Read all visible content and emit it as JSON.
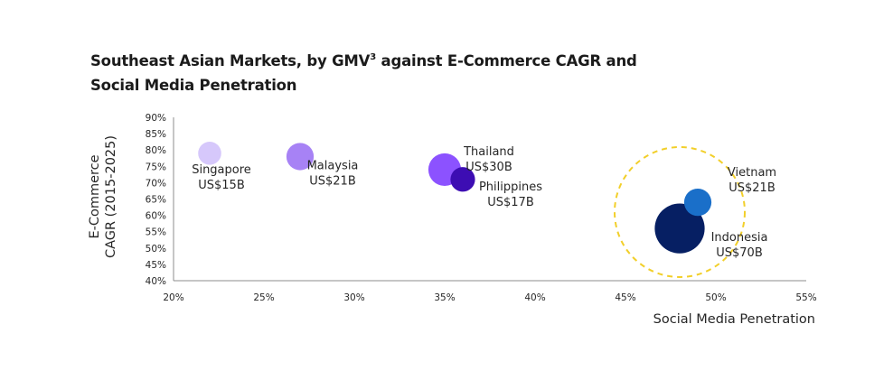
{
  "title": {
    "line1_pre": "Southeast Asian Markets, by GMV",
    "superscript": "3",
    "line1_post": " against E-Commerce CAGR and",
    "line2": "Social Media Penetration"
  },
  "chart_data": {
    "type": "scatter",
    "xlabel": "Social Media Penetration",
    "ylabel_lines": [
      "E-Commerce",
      "CAGR (2015-2025)"
    ],
    "xlim": [
      0.2,
      0.55
    ],
    "ylim": [
      0.4,
      0.9
    ],
    "xticks": [
      0.2,
      0.25,
      0.3,
      0.35,
      0.4,
      0.45,
      0.5,
      0.55
    ],
    "xtick_labels": [
      "20%",
      "25%",
      "30%",
      "35%",
      "40%",
      "45%",
      "50%",
      "55%"
    ],
    "yticks": [
      0.4,
      0.45,
      0.5,
      0.55,
      0.6,
      0.65,
      0.7,
      0.75,
      0.8,
      0.85,
      0.9
    ],
    "ytick_labels": [
      "40%",
      "45%",
      "50%",
      "55%",
      "60%",
      "65%",
      "70%",
      "75%",
      "80%",
      "85%",
      "90%"
    ],
    "grid": false,
    "points": [
      {
        "name": "Singapore",
        "gmv_label": "US$15B",
        "x": 0.22,
        "y": 0.79,
        "gmv": 15,
        "color": "#d6c8fb"
      },
      {
        "name": "Malaysia",
        "gmv_label": "US$21B",
        "x": 0.27,
        "y": 0.78,
        "gmv": 21,
        "color": "#a782f5"
      },
      {
        "name": "Thailand",
        "gmv_label": "US$30B",
        "x": 0.35,
        "y": 0.74,
        "gmv": 30,
        "color": "#8c52ff"
      },
      {
        "name": "Philippines",
        "gmv_label": "US$17B",
        "x": 0.36,
        "y": 0.71,
        "gmv": 17,
        "color": "#3d0db3"
      },
      {
        "name": "Vietnam",
        "gmv_label": "US$21B",
        "x": 0.49,
        "y": 0.64,
        "gmv": 21,
        "color": "#1a6fc9"
      },
      {
        "name": "Indonesia",
        "gmv_label": "US$70B",
        "x": 0.48,
        "y": 0.56,
        "gmv": 70,
        "color": "#061f63"
      }
    ],
    "highlight": {
      "center_x": 0.48,
      "center_y": 0.61,
      "color": "#f2cf2a",
      "style": "dashed"
    }
  }
}
